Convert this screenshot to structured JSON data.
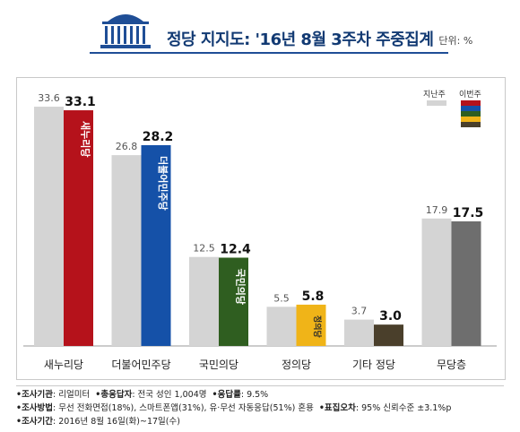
{
  "header": {
    "title": "정당 지지도: '16년 8월 3주차 주중집계",
    "unit": "단위: %"
  },
  "legend": {
    "prev": "지난주",
    "curr": "이번주"
  },
  "chart_data": {
    "type": "bar",
    "title": "정당 지지도: '16년 8월 3주차 주중집계",
    "categories": [
      "새누리당",
      "더불어민주당",
      "국민의당",
      "정의당",
      "기타 정당",
      "무당층"
    ],
    "series": [
      {
        "name": "지난주",
        "values": [
          33.6,
          26.8,
          12.5,
          5.5,
          3.7,
          17.9
        ]
      },
      {
        "name": "이번주",
        "values": [
          33.1,
          28.2,
          12.4,
          5.8,
          3.0,
          17.5
        ]
      }
    ],
    "ylim": [
      0,
      36
    ],
    "grid": false,
    "legend": "top-right",
    "colors": {
      "prev": "#d4d4d4",
      "curr": [
        "#b5121b",
        "#1551a8",
        "#2f5e20",
        "#f0b418",
        "#4a3f2b",
        "#6e6e6e"
      ]
    },
    "logos": [
      "새누리당",
      "더불어민주당",
      "국민의당",
      "정의당"
    ]
  },
  "footer": {
    "line1_label": "•조사기관",
    "line1_value": ": 리얼미터",
    "line1b_label": "•총응답자",
    "line1b_value": ": 전국 성인 1,004명",
    "line1c_label": "•응답률",
    "line1c_value": ": 9.5%",
    "line2_label": "•조사방법",
    "line2_value": ": 무선 전화면접(18%), 스마트폰앱(31%), 유·무선 자동응답(51%) 혼용",
    "line2b_label": "•표집오차",
    "line2b_value": ": 95% 신뢰수준 ±3.1%p",
    "line3_label": "•조사기간",
    "line3_value": ": 2016년 8월 16일(화)~17일(수)"
  }
}
